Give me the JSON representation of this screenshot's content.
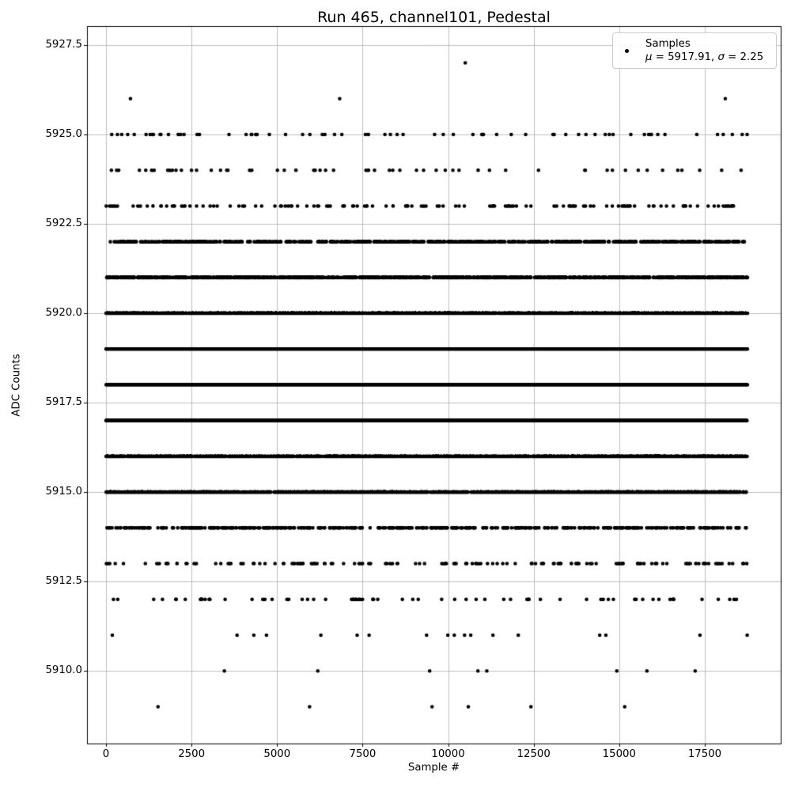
{
  "chart_data": {
    "type": "scatter",
    "title": "Run 465, channel101, Pedestal",
    "xlabel": "Sample #",
    "ylabel": "ADC Counts",
    "xlim": [
      -555,
      19720
    ],
    "ylim": [
      5907.97,
      5928.03
    ],
    "grid": true,
    "n_samples": 18750,
    "mean": 5917.91,
    "sigma": 2.25,
    "marker": {
      "shape": "circle",
      "color": "#000000",
      "radius_px": 2.3
    },
    "colors": {
      "background": "#ffffff",
      "grid": "#b0b0b0",
      "axis": "#000000",
      "marker": "#000000",
      "legend_border": "#cccccc"
    },
    "xticks": [
      {
        "value": 0,
        "label": "0"
      },
      {
        "value": 2500,
        "label": "2500"
      },
      {
        "value": 5000,
        "label": "5000"
      },
      {
        "value": 7500,
        "label": "7500"
      },
      {
        "value": 10000,
        "label": "10000"
      },
      {
        "value": 12500,
        "label": "12500"
      },
      {
        "value": 15000,
        "label": "15000"
      },
      {
        "value": 17500,
        "label": "17500"
      }
    ],
    "yticks": [
      {
        "value": 5910.0,
        "label": "5910.0"
      },
      {
        "value": 5912.5,
        "label": "5912.5"
      },
      {
        "value": 5915.0,
        "label": "5915.0"
      },
      {
        "value": 5917.5,
        "label": "5917.5"
      },
      {
        "value": 5920.0,
        "label": "5920.0"
      },
      {
        "value": 5922.5,
        "label": "5922.5"
      },
      {
        "value": 5925.0,
        "label": "5925.0"
      },
      {
        "value": 5927.5,
        "label": "5927.5"
      }
    ],
    "legend": {
      "position": "upper right",
      "line1": "Samples",
      "mu_symbol": "μ",
      "mu_text": " = 5917.91, ",
      "sigma_symbol": "σ",
      "sigma_text": " = 2.25"
    },
    "bands": [
      {
        "adc": 5927,
        "x": [
          10500
        ]
      },
      {
        "adc": 5926,
        "x": [
          715,
          6830,
          18100
        ]
      },
      {
        "adc": 5925,
        "count": 70
      },
      {
        "adc": 5924,
        "count": 60
      },
      {
        "adc": 5923,
        "count": 140
      },
      {
        "adc": 5922,
        "count": 650
      },
      {
        "adc": 5921,
        "count": 1300
      },
      {
        "adc": 5920,
        "count": 2150
      },
      {
        "adc": 5919,
        "count": 2950
      },
      {
        "adc": 5918,
        "count": 3300
      },
      {
        "adc": 5917,
        "count": 3050
      },
      {
        "adc": 5916,
        "count": 2300
      },
      {
        "adc": 5915,
        "count": 1450
      },
      {
        "adc": 5914,
        "count": 470
      },
      {
        "adc": 5913,
        "count": 150
      },
      {
        "adc": 5912,
        "count": 70
      },
      {
        "adc": 5911,
        "x": [
          185,
          3830,
          4320,
          4690,
          6280,
          7340,
          7690,
          9370,
          9990,
          10180,
          10480,
          10660,
          11310,
          12050,
          14430,
          14610,
          17360,
          18740
        ]
      },
      {
        "adc": 5910,
        "x": [
          3460,
          6190,
          9460,
          10870,
          11130,
          14930,
          15810,
          17220
        ]
      },
      {
        "adc": 5909,
        "x": [
          1520,
          5950,
          9530,
          10590,
          12420,
          15160
        ]
      }
    ]
  }
}
